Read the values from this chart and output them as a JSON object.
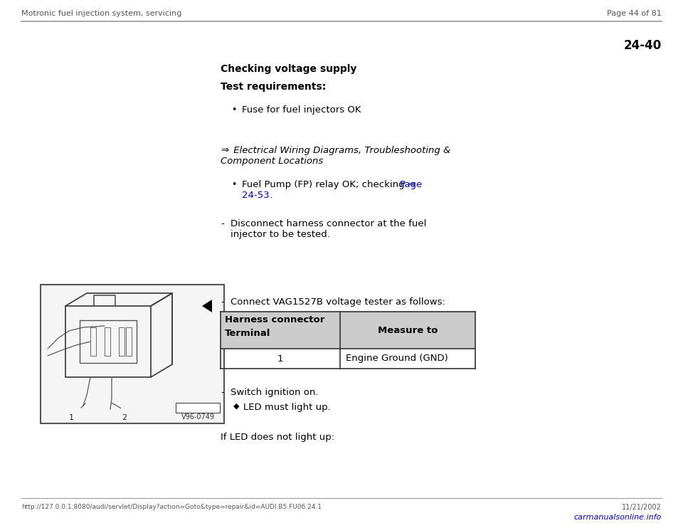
{
  "bg_color": "#ffffff",
  "header_left": "Motronic fuel injection system, servicing",
  "header_right": "Page 44 of 81",
  "section_number": "24-40",
  "section_title": "Checking voltage supply",
  "bold_heading": "Test requirements:",
  "bullet1": "Fuse for fuel injectors OK",
  "ref_arrow": "⇒",
  "ref_line1": " Electrical Wiring Diagrams, Troubleshooting &",
  "ref_line2": "Component Locations",
  "bullet2_text": "Fuel Pump (FP) relay OK; checking ⇒ ",
  "bullet2_link1": "Page",
  "bullet2_link2": "24-53",
  "bullet2_dot": " .",
  "dash1_line1": "Disconnect harness connector at the fuel",
  "dash1_line2": "injector to be tested.",
  "dash2": "Connect VAG1527B voltage tester as follows:",
  "table_col1_header1": "Harness connector",
  "table_col1_header2": "Terminal",
  "table_col2_header": "Measure to",
  "table_row_col1": "1",
  "table_row_col2": "Engine Ground (GND)",
  "dash3": "Switch ignition on.",
  "diamond_text": "LED must light up.",
  "final_text": "If LED does not light up:",
  "footer_url": "http://127.0.0.1:8080/audi/servlet/Display?action=Goto&type=repair&id=AUDI.B5.FU06.24.1",
  "footer_date": "11/21/2002",
  "footer_logo": "carmanualsonline.info",
  "link_color": "#0000cc",
  "text_color": "#000000",
  "header_color": "#555555",
  "table_header_bg": "#cccccc",
  "table_border_color": "#333333",
  "img_border_color": "#555555",
  "img_bg": "#f5f5f5",
  "separator_color": "#999999"
}
